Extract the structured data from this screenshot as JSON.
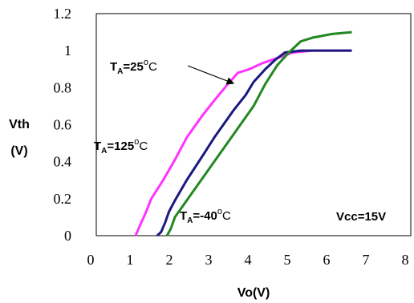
{
  "chart_data": {
    "type": "line",
    "xlabel": "Vo(V)",
    "ylabel_line1": "Vth",
    "ylabel_line2": "(V)",
    "xlim": [
      0,
      8
    ],
    "ylim": [
      0,
      1.2
    ],
    "x_ticks": [
      "0",
      "1",
      "2",
      "3",
      "4",
      "5",
      "6",
      "7",
      "8"
    ],
    "y_ticks": [
      "0",
      "0.2",
      "0.4",
      "0.6",
      "0.8",
      "1",
      "1.2"
    ],
    "grid": false,
    "series": [
      {
        "name": "TA=125°C",
        "color": "#ff33ff",
        "points": [
          [
            1.0,
            0.0
          ],
          [
            1.1,
            0.05
          ],
          [
            1.25,
            0.12
          ],
          [
            1.4,
            0.2
          ],
          [
            1.55,
            0.25
          ],
          [
            1.7,
            0.3
          ],
          [
            2.0,
            0.41
          ],
          [
            2.3,
            0.53
          ],
          [
            2.7,
            0.65
          ],
          [
            3.0,
            0.73
          ],
          [
            3.35,
            0.82
          ],
          [
            3.6,
            0.88
          ],
          [
            3.9,
            0.9
          ],
          [
            4.2,
            0.93
          ],
          [
            4.6,
            0.96
          ],
          [
            5.0,
            0.99
          ],
          [
            5.5,
            1.0
          ],
          [
            6.0,
            1.0
          ],
          [
            6.5,
            1.0
          ]
        ]
      },
      {
        "name": "TA=25°C",
        "color": "#1a1a80",
        "points": [
          [
            1.55,
            0.0
          ],
          [
            1.65,
            0.02
          ],
          [
            1.75,
            0.07
          ],
          [
            1.85,
            0.13
          ],
          [
            2.0,
            0.19
          ],
          [
            2.3,
            0.3
          ],
          [
            2.7,
            0.43
          ],
          [
            3.0,
            0.53
          ],
          [
            3.5,
            0.68
          ],
          [
            3.8,
            0.76
          ],
          [
            4.0,
            0.83
          ],
          [
            4.3,
            0.9
          ],
          [
            4.55,
            0.95
          ],
          [
            4.8,
            0.99
          ],
          [
            5.2,
            1.0
          ],
          [
            6.0,
            1.0
          ],
          [
            6.5,
            1.0
          ]
        ]
      },
      {
        "name": "TA=-40°C",
        "color": "#228822",
        "points": [
          [
            1.8,
            0.0
          ],
          [
            1.9,
            0.04
          ],
          [
            2.0,
            0.1
          ],
          [
            2.2,
            0.16
          ],
          [
            2.5,
            0.25
          ],
          [
            3.0,
            0.4
          ],
          [
            3.5,
            0.55
          ],
          [
            4.0,
            0.7
          ],
          [
            4.3,
            0.82
          ],
          [
            4.6,
            0.92
          ],
          [
            4.9,
            0.99
          ],
          [
            5.2,
            1.05
          ],
          [
            5.5,
            1.07
          ],
          [
            6.0,
            1.09
          ],
          [
            6.5,
            1.1
          ]
        ]
      }
    ],
    "annotations": {
      "ta25": {
        "prefix": "T",
        "sub": "A",
        "value": "=25",
        "sup": "o",
        "unit": "C"
      },
      "ta125": {
        "prefix": "T",
        "sub": "A",
        "value": "=125",
        "sup": "o",
        "unit": "C"
      },
      "ta_40": {
        "prefix": "T",
        "sub": "A",
        "value": "=-40",
        "sup": "o",
        "unit": "C"
      },
      "vcc": "Vcc=15V"
    }
  }
}
